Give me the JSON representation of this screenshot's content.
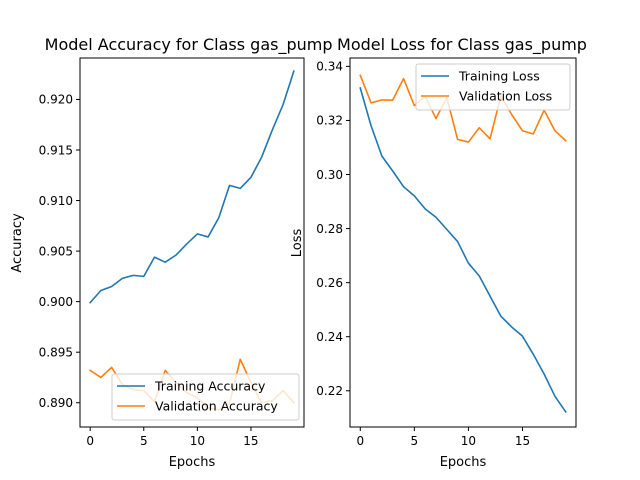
{
  "chart_data": [
    {
      "type": "line",
      "title": "Model Accuracy for Class gas_pump",
      "xlabel": "Epochs",
      "ylabel": "Accuracy",
      "xlim": [
        -0.95,
        19.95
      ],
      "ylim": [
        0.8876,
        0.9241
      ],
      "xticks": [
        0,
        5,
        10,
        15
      ],
      "yticks": [
        0.89,
        0.895,
        0.9,
        0.905,
        0.91,
        0.915,
        0.92
      ],
      "ytick_labels": [
        "0.890",
        "0.895",
        "0.900",
        "0.905",
        "0.910",
        "0.915",
        "0.920"
      ],
      "legend_position": "lower right",
      "x": [
        0,
        1,
        2,
        3,
        4,
        5,
        6,
        7,
        8,
        9,
        10,
        11,
        12,
        13,
        14,
        15,
        16,
        17,
        18,
        19
      ],
      "series": [
        {
          "name": "Training Accuracy",
          "color": "#1f77b4",
          "values": [
            0.8999,
            0.9011,
            0.9015,
            0.9023,
            0.9026,
            0.9025,
            0.9044,
            0.9039,
            0.9046,
            0.9057,
            0.9067,
            0.9064,
            0.9083,
            0.9115,
            0.9112,
            0.9123,
            0.9143,
            0.917,
            0.9195,
            0.9228
          ]
        },
        {
          "name": "Validation Accuracy",
          "color": "#ff7f0e",
          "values": [
            0.8932,
            0.8925,
            0.8935,
            0.8918,
            0.8913,
            0.8912,
            0.8901,
            0.8932,
            0.892,
            0.891,
            0.8905,
            0.8895,
            0.8893,
            0.8899,
            0.8943,
            0.892,
            0.89,
            0.8902,
            0.8912,
            0.89
          ]
        }
      ]
    },
    {
      "type": "line",
      "title": "Model Loss for Class gas_pump",
      "xlabel": "Epochs",
      "ylabel": "Loss",
      "xlim": [
        -0.95,
        19.95
      ],
      "ylim": [
        0.2066,
        0.3431
      ],
      "xticks": [
        0,
        5,
        10,
        15
      ],
      "yticks": [
        0.22,
        0.24,
        0.26,
        0.28,
        0.3,
        0.32,
        0.34
      ],
      "ytick_labels": [
        "0.22",
        "0.24",
        "0.26",
        "0.28",
        "0.30",
        "0.32",
        "0.34"
      ],
      "legend_position": "upper right",
      "x": [
        0,
        1,
        2,
        3,
        4,
        5,
        6,
        7,
        8,
        9,
        10,
        11,
        12,
        13,
        14,
        15,
        16,
        17,
        18,
        19
      ],
      "series": [
        {
          "name": "Training Loss",
          "color": "#1f77b4",
          "values": [
            0.332,
            0.318,
            0.3068,
            0.3013,
            0.2955,
            0.2921,
            0.2873,
            0.2842,
            0.2797,
            0.2752,
            0.2672,
            0.2625,
            0.255,
            0.2476,
            0.2436,
            0.2402,
            0.2335,
            0.2262,
            0.218,
            0.2122
          ]
        },
        {
          "name": "Validation Loss",
          "color": "#ff7f0e",
          "values": [
            0.3367,
            0.3265,
            0.3276,
            0.3275,
            0.3355,
            0.3255,
            0.329,
            0.3207,
            0.3285,
            0.313,
            0.312,
            0.3173,
            0.3132,
            0.329,
            0.3222,
            0.3162,
            0.315,
            0.3238,
            0.3162,
            0.3125
          ]
        }
      ]
    }
  ]
}
